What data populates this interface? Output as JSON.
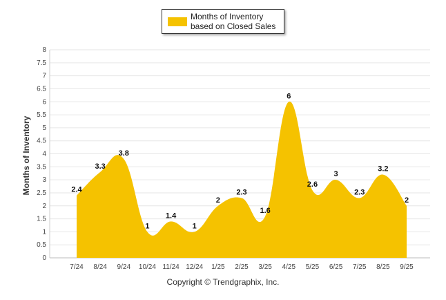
{
  "chart_data": {
    "type": "area",
    "categories": [
      "7/24",
      "8/24",
      "9/24",
      "10/24",
      "11/24",
      "12/24",
      "1/25",
      "2/25",
      "3/25",
      "4/25",
      "5/25",
      "6/25",
      "7/25",
      "8/25",
      "9/25"
    ],
    "series": [
      {
        "name": "Months of Inventory based on Closed Sales",
        "values": [
          2.4,
          3.3,
          3.8,
          1,
          1.4,
          1,
          2,
          2.3,
          1.6,
          6,
          2.6,
          3,
          2.3,
          3.2,
          2
        ],
        "labels": [
          "2.4",
          "3.3",
          "3.8",
          "1",
          "1.4",
          "1",
          "2",
          "2.3",
          "1.6",
          "6",
          "2.6",
          "3",
          "2.3",
          "3.2",
          "2"
        ]
      }
    ],
    "ylabel": "Months of Inventory",
    "ylim": [
      0,
      8
    ],
    "yticks": [
      "0",
      "0.5",
      "1",
      "1.5",
      "2",
      "2.5",
      "3",
      "3.5",
      "4",
      "4.5",
      "5",
      "5.5",
      "6",
      "6.5",
      "7",
      "7.5",
      "8"
    ],
    "ytick_values": [
      0,
      0.5,
      1,
      1.5,
      2,
      2.5,
      3,
      3.5,
      4,
      4.5,
      5,
      5.5,
      6,
      6.5,
      7,
      7.5,
      8
    ],
    "grid": true,
    "legend": "top-center",
    "color": "#f5c200"
  },
  "footer": {
    "copyright": "Copyright © Trendgraphix, Inc."
  }
}
